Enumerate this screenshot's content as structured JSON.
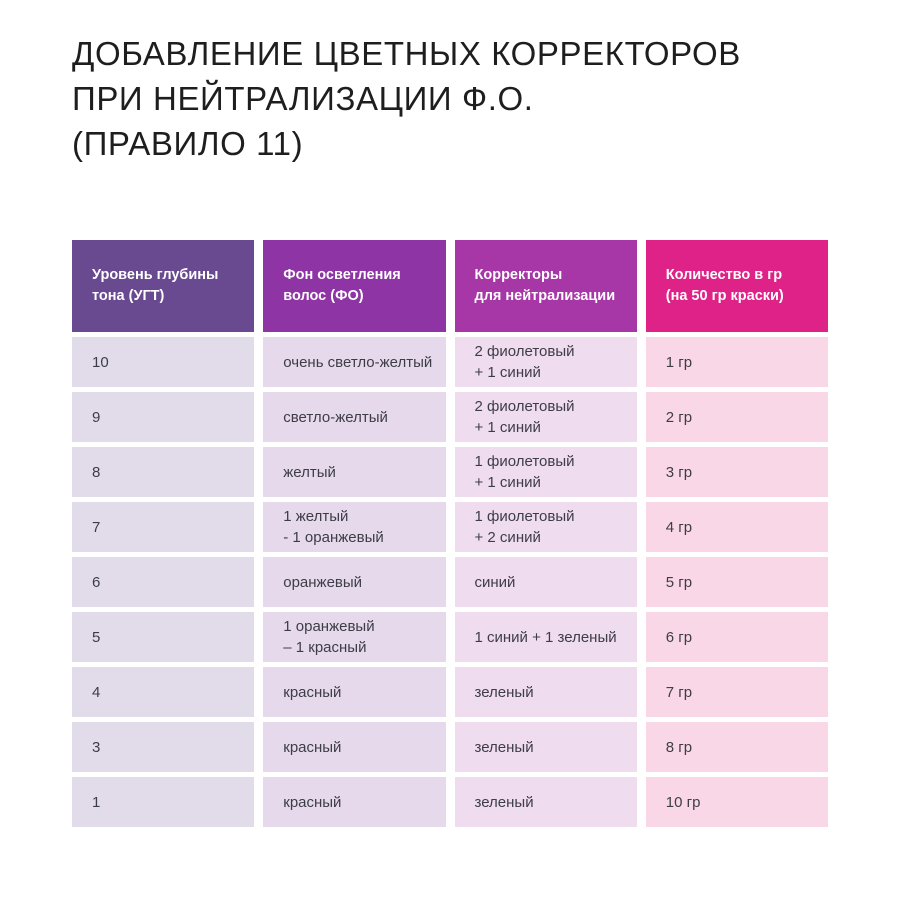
{
  "title": "ДОБАВЛЕНИЕ ЦВЕТНЫХ КОРРЕКТОРОВ\nПРИ НЕЙТРАЛИЗАЦИИ Ф.О.\n(ПРАВИЛО 11)",
  "table": {
    "headers": [
      "Уровень глубины\nтона (УГТ)",
      "Фон осветления\nволос (ФО)",
      "Корректоры\nдля нейтрализации",
      "Количество в гр\n(на 50 гр краски)"
    ],
    "header_colors": [
      "#69498f",
      "#8e34a4",
      "#a737a7",
      "#de2287"
    ],
    "cell_colors": [
      "#e2dbe9",
      "#e6d9ec",
      "#f0dcef",
      "#f9d7e6"
    ],
    "rows": [
      [
        "10",
        "очень светло-желтый",
        "2 фиолетовый\n+ 1 синий",
        "1 гр"
      ],
      [
        "9",
        "светло-желтый",
        "2 фиолетовый\n+ 1 синий",
        "2 гр"
      ],
      [
        "8",
        "желтый",
        "1 фиолетовый\n+ 1 синий",
        "3 гр"
      ],
      [
        "7",
        "1 желтый\n- 1 оранжевый",
        "1 фиолетовый\n+ 2 синий",
        "4 гр"
      ],
      [
        "6",
        "оранжевый",
        "синий",
        "5 гр"
      ],
      [
        "5",
        "1 оранжевый\n– 1 красный",
        "1 синий + 1 зеленый",
        "6 гр"
      ],
      [
        "4",
        "красный",
        "зеленый",
        "7 гр"
      ],
      [
        "3",
        "красный",
        "зеленый",
        "8 гр"
      ],
      [
        "1",
        "красный",
        "зеленый",
        "10 гр"
      ]
    ]
  },
  "chart_data": {
    "type": "table",
    "title": "Добавление цветных корректоров при нейтрализации Ф.О. (Правило 11)",
    "columns": [
      "Уровень глубины тона (УГТ)",
      "Фон осветления волос (ФО)",
      "Корректоры для нейтрализации",
      "Количество в гр (на 50 гр краски)"
    ],
    "rows": [
      [
        "10",
        "очень светло-желтый",
        "2 фиолетовый + 1 синий",
        "1 гр"
      ],
      [
        "9",
        "светло-желтый",
        "2 фиолетовый + 1 синий",
        "2 гр"
      ],
      [
        "8",
        "желтый",
        "1 фиолетовый + 1 синий",
        "3 гр"
      ],
      [
        "7",
        "1 желтый - 1 оранжевый",
        "1 фиолетовый + 2 синий",
        "4 гр"
      ],
      [
        "6",
        "оранжевый",
        "синий",
        "5 гр"
      ],
      [
        "5",
        "1 оранжевый – 1 красный",
        "1 синий + 1 зеленый",
        "6 гр"
      ],
      [
        "4",
        "красный",
        "зеленый",
        "7 гр"
      ],
      [
        "3",
        "красный",
        "зеленый",
        "8 гр"
      ],
      [
        "1",
        "красный",
        "зеленый",
        "10 гр"
      ]
    ]
  }
}
